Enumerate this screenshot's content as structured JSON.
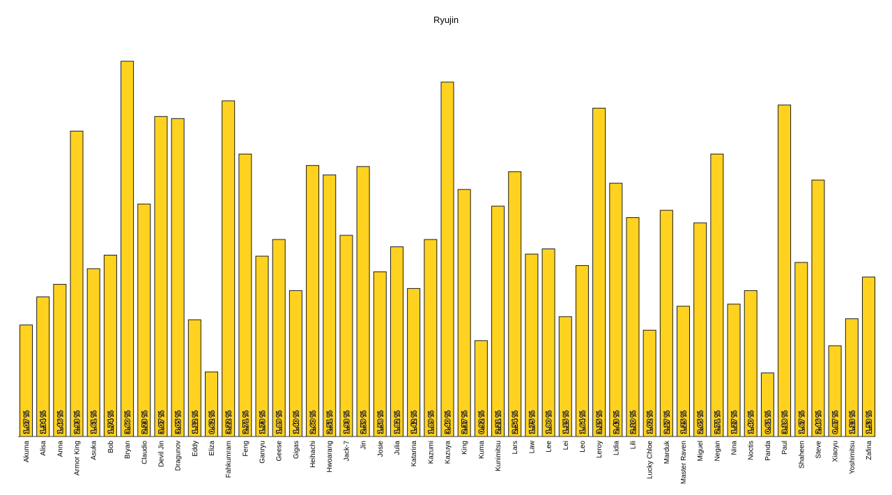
{
  "chart_data": {
    "type": "bar",
    "title": "Ryujin",
    "xlabel": "",
    "ylabel": "",
    "ylim": [
      0,
      3.72
    ],
    "grid": false,
    "legend": "none",
    "bar_color": "#ffd21f",
    "bar_edge_color": "#1a1a1a",
    "label_suffix": " %",
    "categories": [
      "Akuma",
      "Alisa",
      "Anna",
      "Armor King",
      "Asuka",
      "Bob",
      "Bryan",
      "Claudio",
      "Devil Jin",
      "Dragunov",
      "Eddy",
      "Eliza",
      "Fahkumram",
      "Feng",
      "Ganryu",
      "Geese",
      "Gigas",
      "Heihachi",
      "Hwoarang",
      "Jack-7",
      "Jin",
      "Josie",
      "Julia",
      "Katarina",
      "Kazumi",
      "Kazuya",
      "King",
      "Kuma",
      "Kunimitsu",
      "Lars",
      "Law",
      "Lee",
      "Lei",
      "Leo",
      "Leroy",
      "Lidia",
      "Lili",
      "Lucky Chloe",
      "Marduk",
      "Master Raven",
      "Miguel",
      "Negan",
      "Nina",
      "Noctis",
      "Panda",
      "Paul",
      "Shaheen",
      "Steve",
      "Xiaoyu",
      "Yoshimitsu",
      "Zafina"
    ],
    "values": [
      1.07,
      1.34,
      1.46,
      2.93,
      1.61,
      1.74,
      3.6,
      2.23,
      3.07,
      3.05,
      1.12,
      0.62,
      3.22,
      2.71,
      1.73,
      1.89,
      1.4,
      2.6,
      2.51,
      1.93,
      2.59,
      1.58,
      1.82,
      1.42,
      1.89,
      3.4,
      2.37,
      0.92,
      2.21,
      2.54,
      1.75,
      1.8,
      1.15,
      1.64,
      3.15,
      2.43,
      2.1,
      1.02,
      2.17,
      1.25,
      2.05,
      2.71,
      1.27,
      1.4,
      0.61,
      3.18,
      1.67,
      2.46,
      0.87,
      1.13,
      1.53
    ],
    "value_labels": [
      "1.07 %",
      "1.34 %",
      "1.46 %",
      "2.93 %",
      "1.61 %",
      "1.74 %",
      "3.60 %",
      "2.23 %",
      "3.07 %",
      "3.05 %",
      "1.12 %",
      "0.62 %",
      "3.22 %",
      "2.71 %",
      "1.73 %",
      "1.89 %",
      "1.40 %",
      "2.60 %",
      "2.51 %",
      "1.93 %",
      "2.59 %",
      "1.58 %",
      "1.82 %",
      "1.42 %",
      "1.89 %",
      "3.40 %",
      "2.37 %",
      "0.92 %",
      "2.21 %",
      "2.54 %",
      "1.75 %",
      "1.80 %",
      "1.15 %",
      "1.64 %",
      "3.15 %",
      "2.43 %",
      "2.10 %",
      "1.02 %",
      "2.17 %",
      "1.25 %",
      "2.05 %",
      "2.71 %",
      "1.27 %",
      "1.40 %",
      "0.61 %",
      "3.18 %",
      "1.67 %",
      "2.46 %",
      "0.87 %",
      "1.13 %",
      "1.53 %"
    ]
  }
}
